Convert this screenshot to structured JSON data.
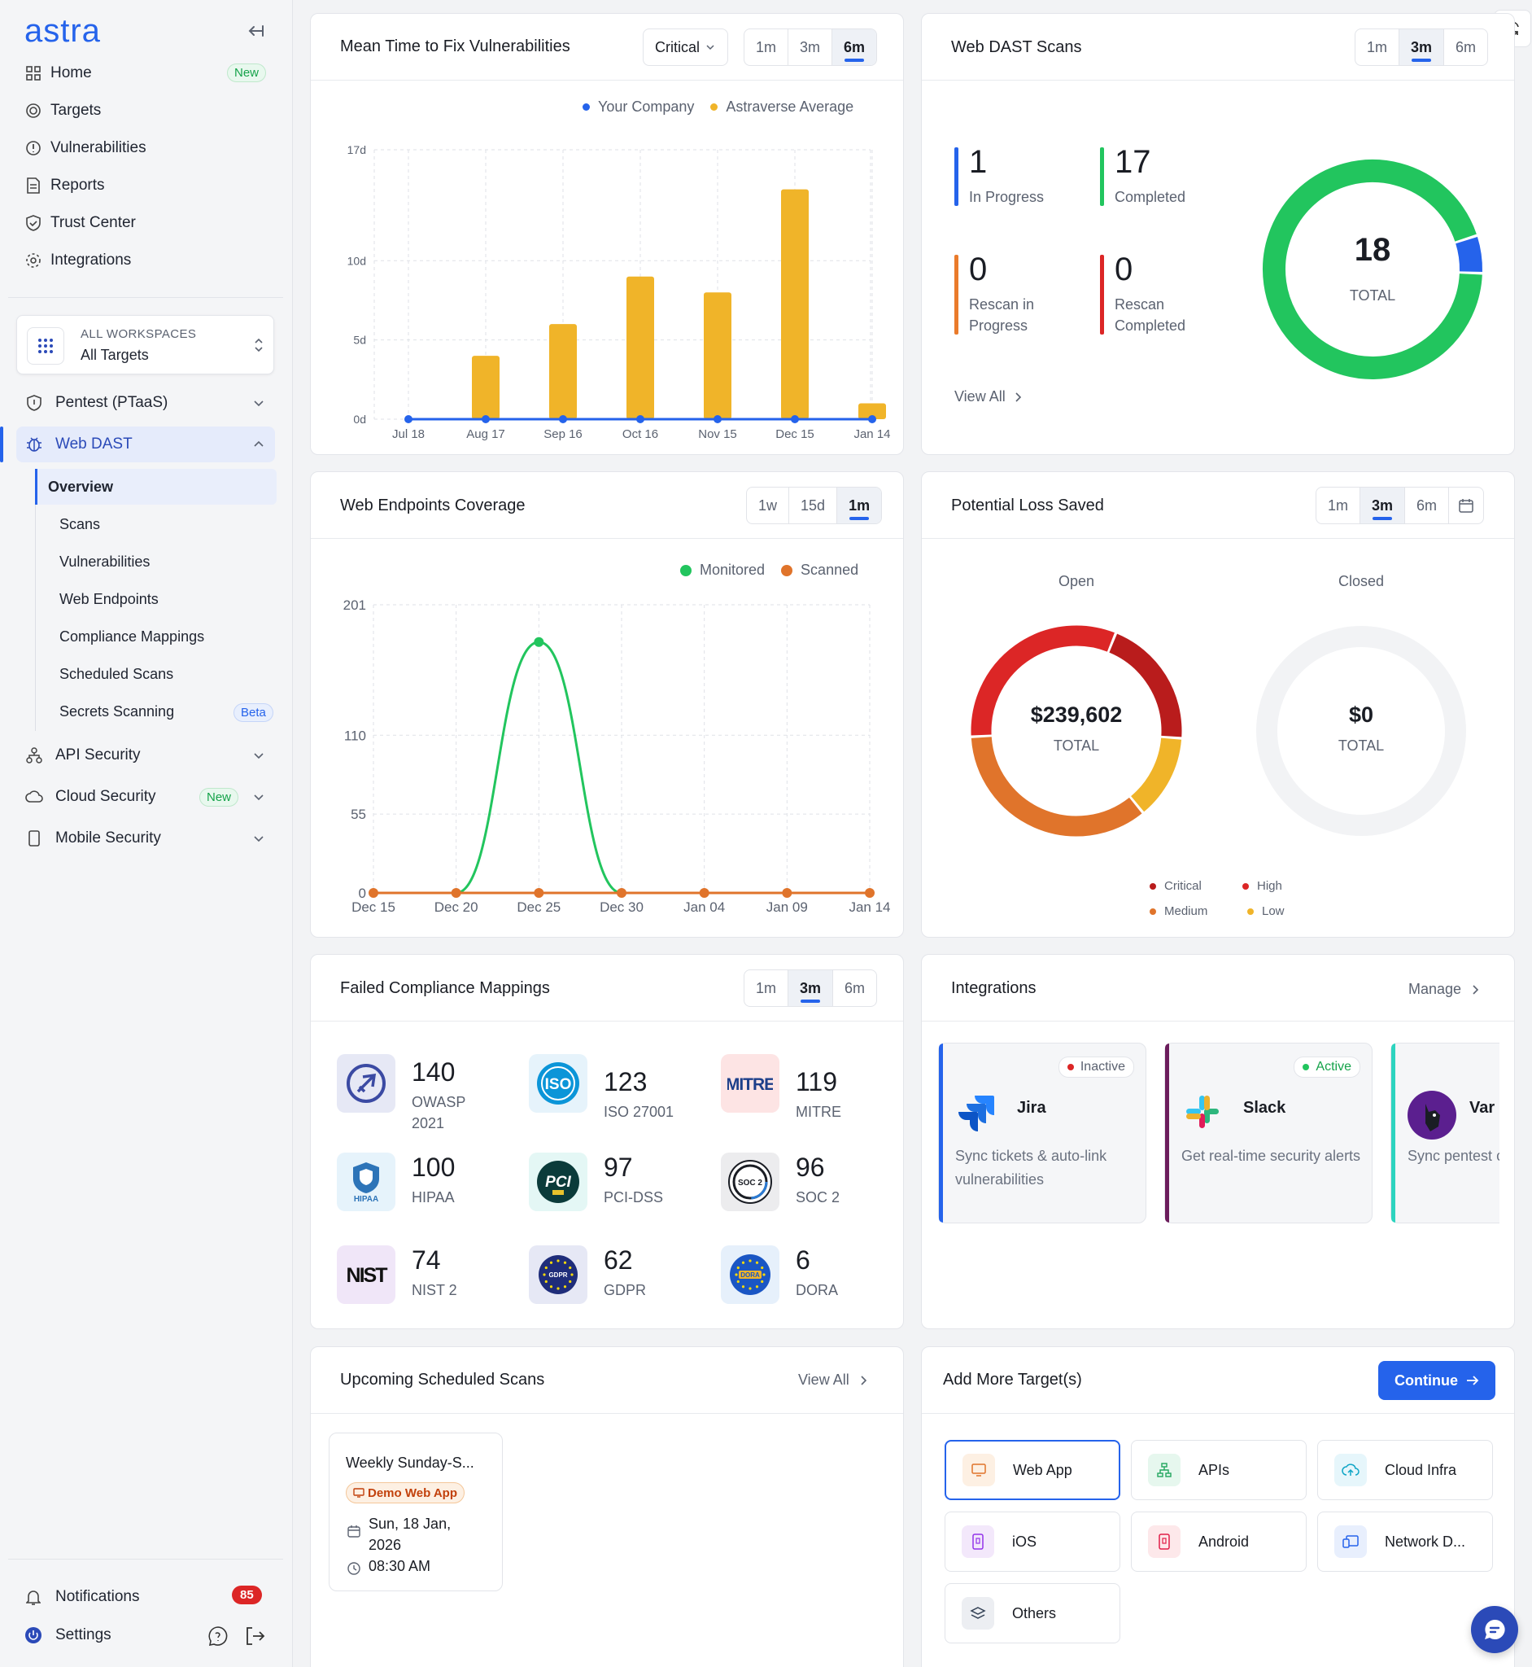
{
  "sidebar": {
    "logo": "astra",
    "nav": [
      {
        "label": "Home",
        "badge": "New"
      },
      {
        "label": "Targets"
      },
      {
        "label": "Vulnerabilities"
      },
      {
        "label": "Reports"
      },
      {
        "label": "Trust Center"
      },
      {
        "label": "Integrations"
      }
    ],
    "workspace": {
      "top": "ALL WORKSPACES",
      "bottom": "All Targets"
    },
    "groups": {
      "pentest": "Pentest (PTaaS)",
      "webdast": "Web DAST",
      "api": "API Security",
      "cloud": "Cloud Security",
      "cloud_badge": "New",
      "mobile": "Mobile Security"
    },
    "webdast_sub": [
      "Overview",
      "Scans",
      "Vulnerabilities",
      "Web Endpoints",
      "Compliance Mappings",
      "Scheduled Scans",
      "Secrets Scanning"
    ],
    "secrets_badge": "Beta",
    "notifications": "Notifications",
    "notifications_count": "85",
    "settings": "Settings"
  },
  "mttf": {
    "title": "Mean Time to Fix Vulnerabilities",
    "dropdown": "Critical",
    "ranges": [
      "1m",
      "3m",
      "6m"
    ],
    "active_range": "6m"
  },
  "dast": {
    "title": "Web DAST Scans",
    "ranges": [
      "1m",
      "3m",
      "6m"
    ],
    "active_range": "3m",
    "stats": [
      {
        "num": "1",
        "label": "In Progress",
        "color": "#2563eb"
      },
      {
        "num": "17",
        "label": "Completed",
        "color": "#22c55e"
      },
      {
        "num": "0",
        "label": "Rescan in Progress",
        "color": "#ea7b2b"
      },
      {
        "num": "0",
        "label": "Rescan Completed",
        "color": "#dc2626"
      }
    ],
    "view_all": "View All",
    "total": "18",
    "total_label": "TOTAL"
  },
  "endpoints": {
    "title": "Web Endpoints Coverage",
    "ranges": [
      "1w",
      "15d",
      "1m"
    ],
    "active_range": "1m"
  },
  "loss": {
    "title": "Potential Loss Saved",
    "ranges": [
      "1m",
      "3m",
      "6m"
    ],
    "active_range": "3m",
    "open_label": "Open",
    "closed_label": "Closed",
    "open_total": "$239,602",
    "closed_total": "$0",
    "total_label": "TOTAL",
    "legend": [
      "Critical",
      "High",
      "Medium",
      "Low"
    ],
    "colors": {
      "Critical": "#b91c1c",
      "High": "#dc2626",
      "Medium": "#e0742b",
      "Low": "#f0b429"
    }
  },
  "compliance": {
    "title": "Failed Compliance Mappings",
    "ranges": [
      "1m",
      "3m",
      "6m"
    ],
    "active_range": "3m",
    "items": [
      {
        "num": "140",
        "label": "OWASP 2021",
        "icon": "owasp"
      },
      {
        "num": "123",
        "label": "ISO 27001",
        "icon": "iso"
      },
      {
        "num": "119",
        "label": "MITRE",
        "icon": "mitre"
      },
      {
        "num": "100",
        "label": "HIPAA",
        "icon": "hipaa"
      },
      {
        "num": "97",
        "label": "PCI-DSS",
        "icon": "pci"
      },
      {
        "num": "96",
        "label": "SOC 2",
        "icon": "soc2"
      },
      {
        "num": "74",
        "label": "NIST 2",
        "icon": "nist"
      },
      {
        "num": "62",
        "label": "GDPR",
        "icon": "gdpr"
      },
      {
        "num": "6",
        "label": "DORA",
        "icon": "dora"
      }
    ],
    "logo_text": {
      "iso": "ISO",
      "mitre": "MITRE",
      "hipaa": "HIPAA",
      "pci": "PCI",
      "soc2": "SOC 2",
      "nist": "NIST",
      "gdpr": "GDPR",
      "dora": "DORA"
    }
  },
  "integrations": {
    "title": "Integrations",
    "manage": "Manage",
    "items": [
      {
        "name": "Jira",
        "status": "Inactive",
        "desc": "Sync tickets & auto-link vulnerabilities",
        "accent": "#2563eb"
      },
      {
        "name": "Slack",
        "status": "Active",
        "desc": "Get real-time security alerts",
        "accent": "#6b1d5c"
      },
      {
        "name": "Var",
        "desc": "Sync pentest compliance",
        "accent": "#2dd4bf"
      }
    ]
  },
  "scheduled": {
    "title": "Upcoming Scheduled Scans",
    "view_all": "View All",
    "scan": {
      "name": "Weekly Sunday-S...",
      "target": "Demo Web App",
      "date": "Sun, 18 Jan, 2026",
      "time": "08:30 AM"
    }
  },
  "add_targets": {
    "title": "Add More Target(s)",
    "continue": "Continue",
    "options": [
      "Web App",
      "APIs",
      "Cloud Infra",
      "iOS",
      "Android",
      "Network D...",
      "Others"
    ]
  },
  "chart_data": [
    {
      "type": "bar",
      "title": "Mean Time to Fix Vulnerabilities",
      "categories": [
        "Jul 18",
        "Aug 17",
        "Sep 16",
        "Oct 16",
        "Nov 15",
        "Dec 15",
        "Jan 14"
      ],
      "y_ticks": [
        "0d",
        "5d",
        "10d",
        "17d"
      ],
      "ylim": [
        0,
        17
      ],
      "series": [
        {
          "name": "Your Company",
          "color": "#2563eb",
          "values": [
            0,
            0,
            0,
            0,
            0,
            0,
            0
          ]
        },
        {
          "name": "Astraverse Average",
          "color": "#f0b429",
          "values": [
            0,
            4,
            6,
            9,
            8,
            14.5,
            1
          ]
        }
      ]
    },
    {
      "type": "line",
      "title": "Web Endpoints Coverage",
      "categories": [
        "Dec 15",
        "Dec 20",
        "Dec 25",
        "Dec 30",
        "Jan 04",
        "Jan 09",
        "Jan 14"
      ],
      "y_ticks": [
        "0",
        "55",
        "110",
        "201"
      ],
      "ylim": [
        0,
        201
      ],
      "series": [
        {
          "name": "Monitored",
          "color": "#22c55e",
          "values": [
            0,
            0,
            175,
            0,
            0,
            0,
            0
          ]
        },
        {
          "name": "Scanned",
          "color": "#e0742b",
          "values": [
            0,
            0,
            0,
            0,
            0,
            0,
            0
          ]
        }
      ]
    },
    {
      "type": "pie",
      "title": "Web DAST Scans",
      "series": [
        {
          "name": "Completed",
          "value": 17,
          "color": "#22c55e"
        },
        {
          "name": "In Progress",
          "value": 1,
          "color": "#2563eb"
        }
      ]
    },
    {
      "type": "pie",
      "title": "Potential Loss Saved (Open)",
      "series": [
        {
          "name": "Critical",
          "value": 20,
          "color": "#b91c1c"
        },
        {
          "name": "Low",
          "value": 13,
          "color": "#f0b429"
        },
        {
          "name": "Medium",
          "value": 35,
          "color": "#e0742b"
        },
        {
          "name": "High",
          "value": 32,
          "color": "#dc2626"
        }
      ]
    }
  ]
}
